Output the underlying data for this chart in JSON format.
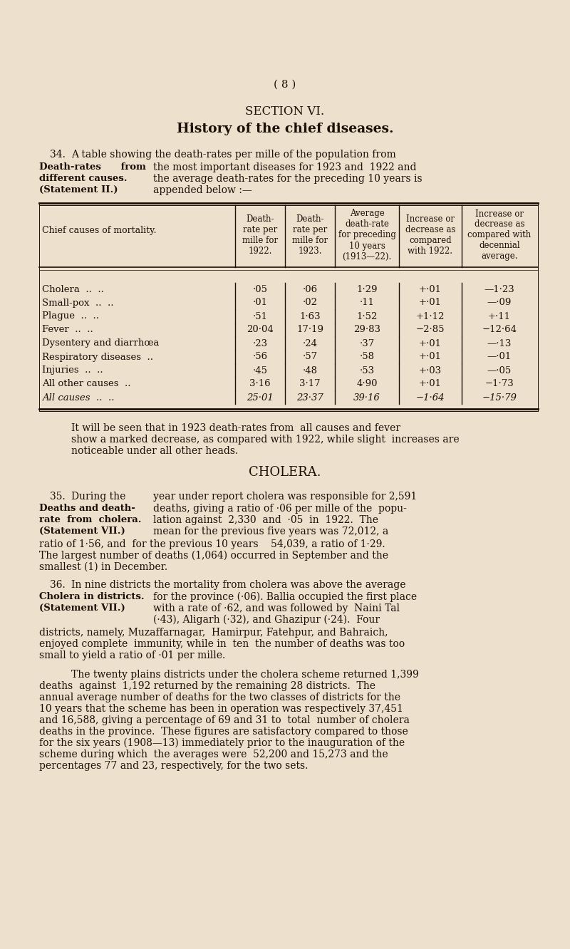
{
  "bg_color": "#ede0cc",
  "text_color": "#1a1008",
  "page_number": "( 8 )",
  "section_title": "SECTION VI.",
  "section_subtitle": "History of the chief diseases.",
  "table_headers": [
    "Chief causes of mortality.",
    "Death-\nrate per\nmille for\n1922.",
    "Death-\nrate per\nmille for\n1923.",
    "Average\ndeath-rate\nfor preceding\n10 years\n(1913—22).",
    "Increase or\ndecrease as\ncompared\nwith 1922.",
    "Increase or\ndecrease as\ncompared with\ndecennial\naverage."
  ],
  "table_rows": [
    [
      "Cholera  ..  ..",
      "·05",
      "·06",
      "1·29",
      "+·01",
      "—1·23"
    ],
    [
      "Small-pox  ..  ..",
      "·01",
      "·02",
      "·11",
      "+·01",
      "—·09"
    ],
    [
      "Plague  ..  ..",
      "·51",
      "1·63",
      "1·52",
      "+1·12",
      "+·11"
    ],
    [
      "Fever  ..  ..",
      "20·04",
      "17·19",
      "29·83",
      "−2·85",
      "−12·64"
    ],
    [
      "Dysentery and diarrhœa",
      "·23",
      "·24",
      "·37",
      "+·01",
      "—·13"
    ],
    [
      "Respiratory diseases  ..",
      "·56",
      "·57",
      "·58",
      "+·01",
      "—·01"
    ],
    [
      "Injuries  ..  ..",
      "·45",
      "·48",
      "·53",
      "+·03",
      "—·05"
    ],
    [
      "All other causes  ..",
      "3·16",
      "3·17",
      "4·90",
      "+·01",
      "−1·73"
    ],
    [
      "All causes  ..  ..",
      "25·01",
      "23·37",
      "39·16",
      "−1·64",
      "−15·79"
    ]
  ]
}
